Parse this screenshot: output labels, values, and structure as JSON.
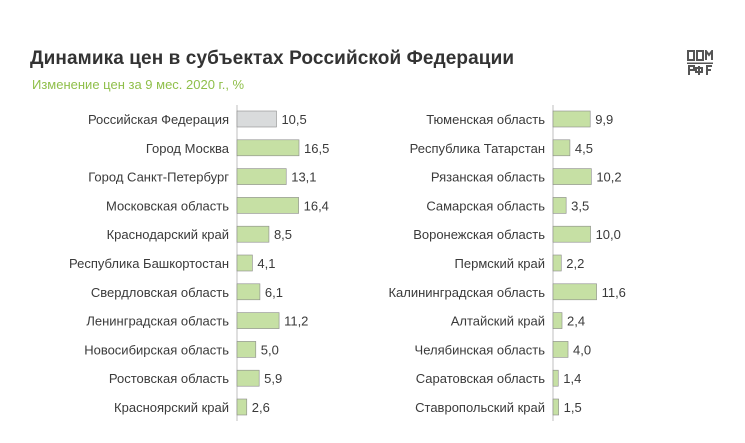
{
  "header": {
    "title": "Динамика цен в субъектах Российской Федерации",
    "subtitle": "Изменение цен за 9 мес. 2020 г., %",
    "logo_icon": "dom-rf-logo-icon"
  },
  "colors": {
    "bar": "#c6e0a4",
    "bar_highlight": "#d9dbdc",
    "bar_stroke": "#8a8a8a",
    "axis": "#bfbfbf",
    "title": "#333333",
    "subtitle": "#8fbf4a"
  },
  "chart_data": [
    {
      "type": "bar",
      "orientation": "horizontal",
      "categories": [
        "Российская Федерация",
        "Город Москва",
        "Город Санкт-Петербург",
        "Московская область",
        "Краснодарский край",
        "Республика Башкортостан",
        "Свердловская область",
        "Ленинградская область",
        "Новосибирская область",
        "Ростовская область",
        "Красноярский край"
      ],
      "values": [
        10.5,
        16.5,
        13.1,
        16.4,
        8.5,
        4.1,
        6.1,
        11.2,
        5.0,
        5.9,
        2.6
      ],
      "value_labels": [
        "10,5",
        "16,5",
        "13,1",
        "16,4",
        "8,5",
        "4,1",
        "6,1",
        "11,2",
        "5,0",
        "5,9",
        "2,6"
      ],
      "highlight_index": 0,
      "xlim": [
        0,
        16.5
      ]
    },
    {
      "type": "bar",
      "orientation": "horizontal",
      "categories": [
        "Тюменская область",
        "Республика Татарстан",
        "Рязанская область",
        "Самарская область",
        "Воронежская область",
        "Пермский край",
        "Калининградская область",
        "Алтайский край",
        "Челябинская область",
        "Саратовская область",
        "Ставропольский край"
      ],
      "values": [
        9.9,
        4.5,
        10.2,
        3.5,
        10.0,
        2.2,
        11.6,
        2.4,
        4.0,
        1.4,
        1.5
      ],
      "value_labels": [
        "9,9",
        "4,5",
        "10,2",
        "3,5",
        "10,0",
        "2,2",
        "11,6",
        "2,4",
        "4,0",
        "1,4",
        "1,5"
      ],
      "xlim": [
        0,
        16.5
      ]
    }
  ]
}
